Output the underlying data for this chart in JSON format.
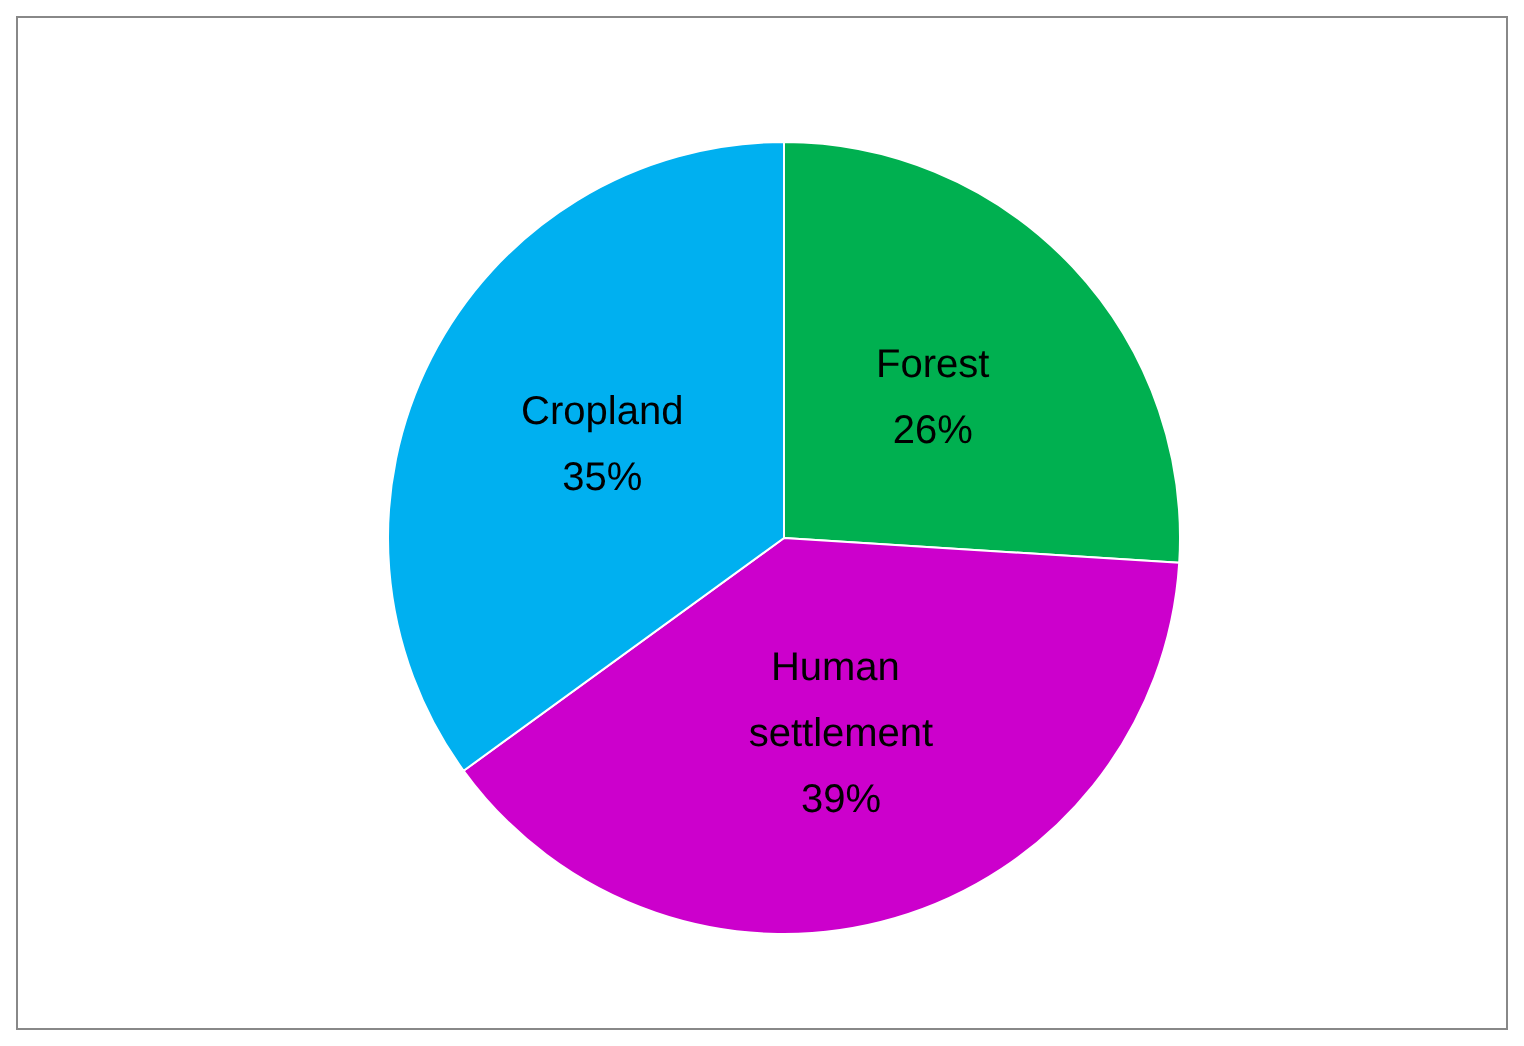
{
  "chart_data": {
    "type": "pie",
    "categories": [
      "Forest",
      "Human settlement",
      "Cropland"
    ],
    "values": [
      26,
      39,
      35
    ],
    "colors": [
      "#00b050",
      "#cc00cc",
      "#00b0f0"
    ],
    "value_labels": [
      "26%",
      "39%",
      "35%"
    ],
    "legend": false
  }
}
